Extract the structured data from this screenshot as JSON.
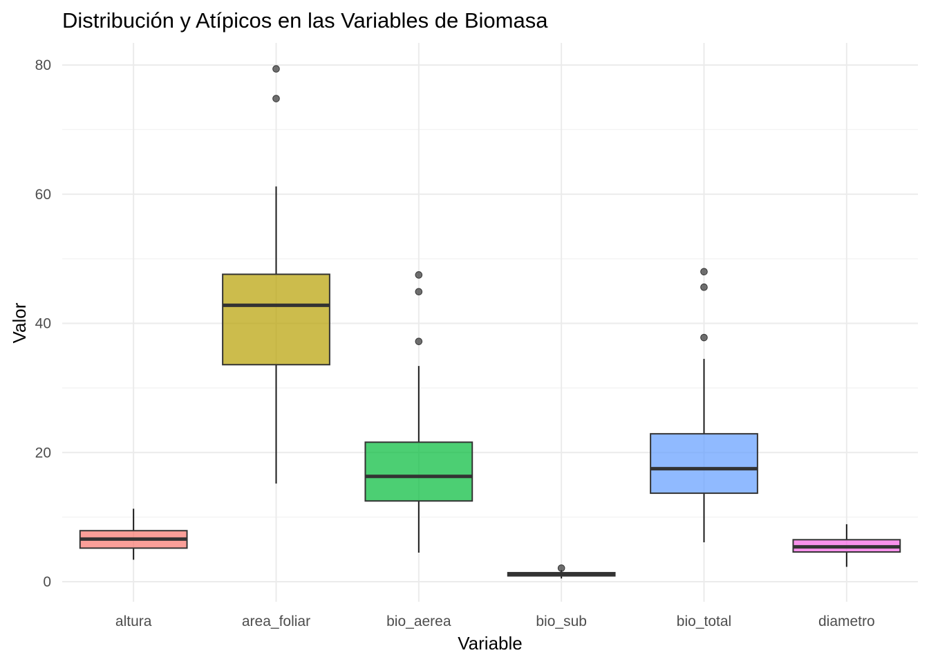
{
  "chart_data": {
    "type": "boxplot",
    "title": "Distribución y Atípicos en las Variables de Biomasa",
    "xlabel": "Variable",
    "ylabel": "Valor",
    "ylim": [
      -3.2,
      83.2
    ],
    "y_ticks": [
      0,
      20,
      40,
      60,
      80
    ],
    "y_minor_ticks": [
      10,
      30,
      50,
      70
    ],
    "grid": true,
    "legend": "none",
    "categories": [
      "altura",
      "area_foliar",
      "bio_aerea",
      "bio_sub",
      "bio_total",
      "diametro"
    ],
    "series": [
      {
        "category": "altura",
        "color": "#F8766D",
        "min": 3.4,
        "q1": 5.2,
        "median": 6.6,
        "q3": 7.9,
        "max": 11.3,
        "outliers": []
      },
      {
        "category": "area_foliar",
        "color": "#B79F00",
        "min": 15.2,
        "q1": 33.6,
        "median": 42.8,
        "q3": 47.6,
        "max": 61.2,
        "outliers": [
          74.8,
          79.4
        ]
      },
      {
        "category": "bio_aerea",
        "color": "#00BA38",
        "min": 4.5,
        "q1": 12.5,
        "median": 16.3,
        "q3": 21.6,
        "max": 33.4,
        "outliers": [
          37.2,
          44.9,
          47.5
        ]
      },
      {
        "category": "bio_sub",
        "color": "#00BFC4",
        "min": 0.5,
        "q1": 0.9,
        "median": 1.1,
        "q3": 1.4,
        "max": 1.8,
        "outliers": [
          2.1
        ]
      },
      {
        "category": "bio_total",
        "color": "#619CFF",
        "min": 6.1,
        "q1": 13.7,
        "median": 17.5,
        "q3": 22.9,
        "max": 34.5,
        "outliers": [
          37.8,
          45.6,
          48.0
        ]
      },
      {
        "category": "diametro",
        "color": "#F564E3",
        "min": 2.3,
        "q1": 4.6,
        "median": 5.4,
        "q3": 6.5,
        "max": 8.9,
        "outliers": []
      }
    ]
  }
}
